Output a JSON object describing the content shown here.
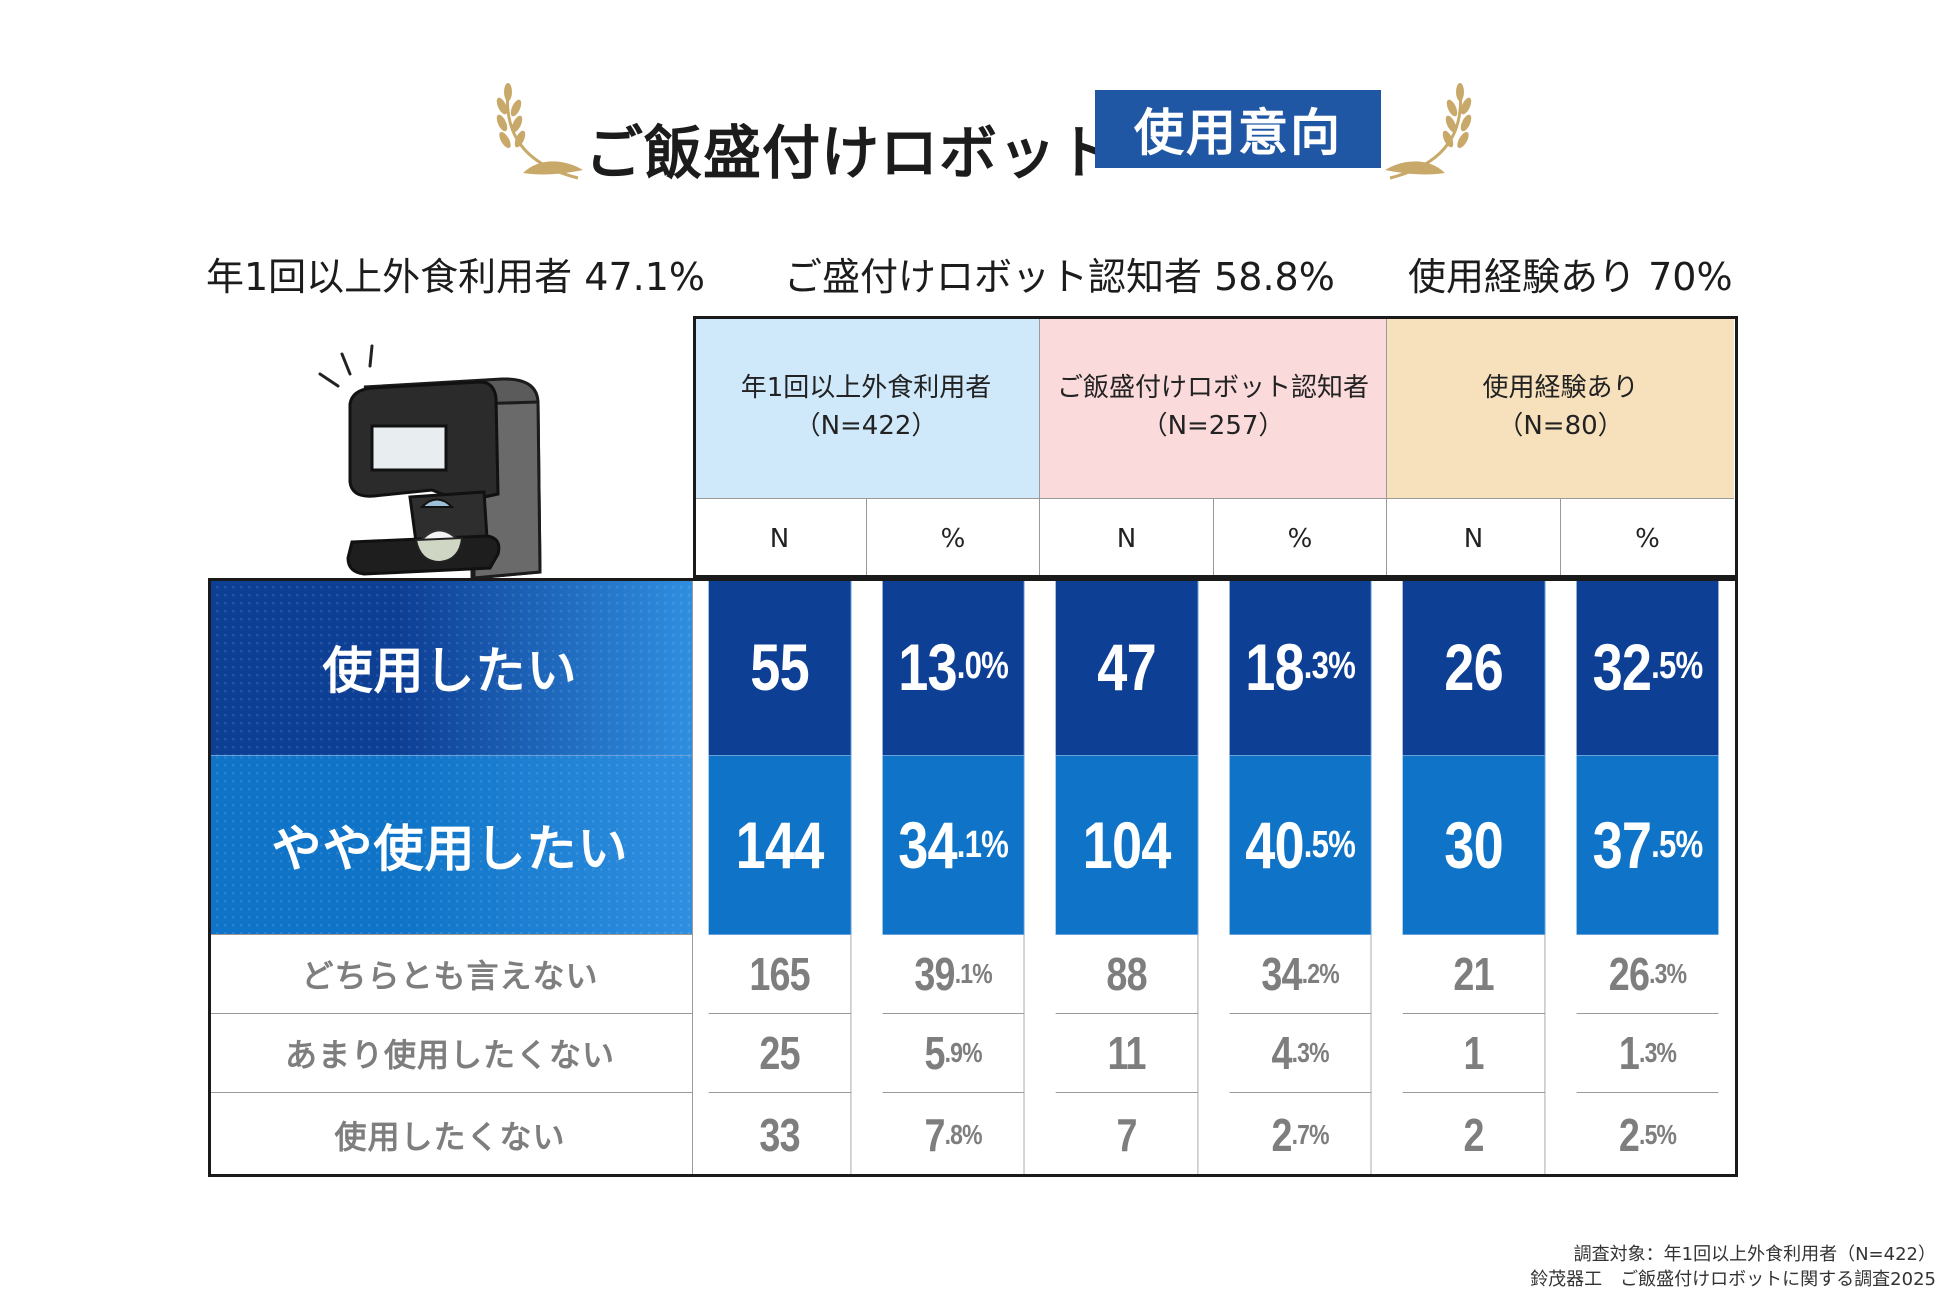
{
  "title": {
    "main": "ご飯盛付けロボット",
    "badge": "使用意向"
  },
  "summary": [
    {
      "label": "年1回以上外食利用者",
      "value": "47.1%"
    },
    {
      "label": "ご盛付けロボット認知者",
      "value": "58.8%"
    },
    {
      "label": "使用経験あり",
      "value": "70%"
    }
  ],
  "colors": {
    "accent": "#1f57a4",
    "row1": "#0d3f95",
    "row2": "#0f74c7",
    "group1": "#cfe9fb",
    "group2": "#fadadb",
    "group3": "#f7e1bd",
    "muted_text": "#7e7e7e"
  },
  "chart_data": {
    "type": "table",
    "title": "ご飯盛付けロボット 使用意向",
    "groups": [
      {
        "name": "年1回以上外食利用者",
        "n_label": "（N=422）"
      },
      {
        "name": "ご飯盛付けロボット認知者",
        "n_label": "（N=257）"
      },
      {
        "name": "使用経験あり",
        "n_label": "（N=80）"
      }
    ],
    "subheaders": [
      "N",
      "%"
    ],
    "rows": [
      {
        "label": "使用したい",
        "values": [
          {
            "n": "55",
            "pct_int": "13",
            "pct_dec": ".0%"
          },
          {
            "n": "47",
            "pct_int": "18",
            "pct_dec": ".3%"
          },
          {
            "n": "26",
            "pct_int": "32",
            "pct_dec": ".5%"
          }
        ]
      },
      {
        "label": "やや使用したい",
        "values": [
          {
            "n": "144",
            "pct_int": "34",
            "pct_dec": ".1%"
          },
          {
            "n": "104",
            "pct_int": "40",
            "pct_dec": ".5%"
          },
          {
            "n": "30",
            "pct_int": "37",
            "pct_dec": ".5%"
          }
        ]
      },
      {
        "label": "どちらとも言えない",
        "values": [
          {
            "n": "165",
            "pct_int": "39",
            "pct_dec": ".1%"
          },
          {
            "n": "88",
            "pct_int": "34",
            "pct_dec": ".2%"
          },
          {
            "n": "21",
            "pct_int": "26",
            "pct_dec": ".3%"
          }
        ]
      },
      {
        "label": "あまり使用したくない",
        "values": [
          {
            "n": "25",
            "pct_int": "5",
            "pct_dec": ".9%"
          },
          {
            "n": "11",
            "pct_int": "4",
            "pct_dec": ".3%"
          },
          {
            "n": "1",
            "pct_int": "1",
            "pct_dec": ".3%"
          }
        ]
      },
      {
        "label": "使用したくない",
        "values": [
          {
            "n": "33",
            "pct_int": "7",
            "pct_dec": ".8%"
          },
          {
            "n": "7",
            "pct_int": "2",
            "pct_dec": ".7%"
          },
          {
            "n": "2",
            "pct_int": "2",
            "pct_dec": ".5%"
          }
        ]
      }
    ]
  },
  "footer": {
    "line1": "調査対象：年1回以上外食利用者（N=422）",
    "line2": "鈴茂器工　ご飯盛付けロボットに関する調査2025"
  }
}
